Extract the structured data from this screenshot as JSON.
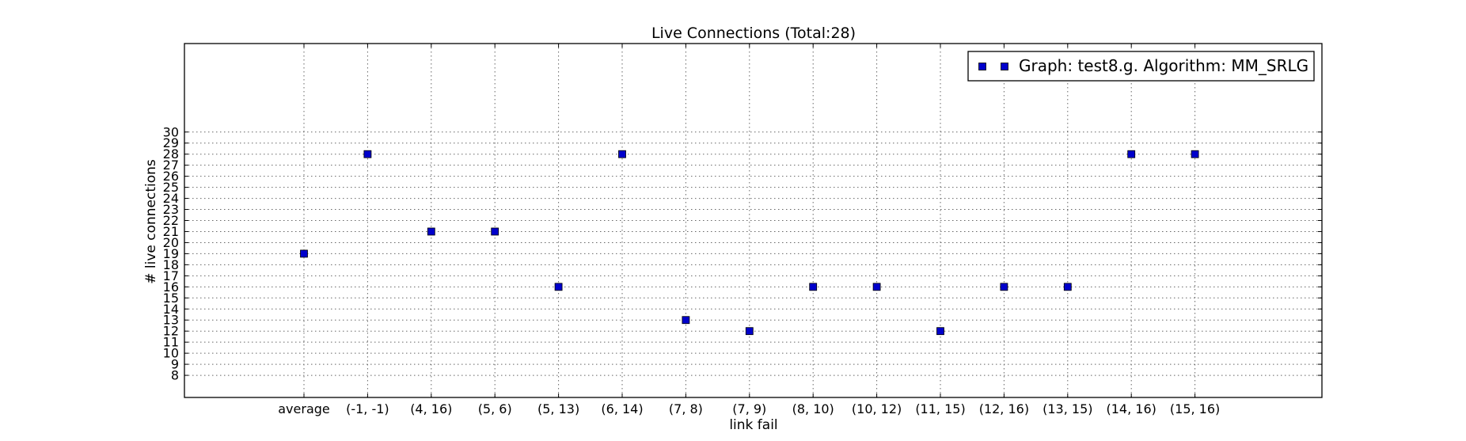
{
  "chart_data": {
    "type": "scatter",
    "title": "Live Connections (Total:28)",
    "xlabel": "link fail",
    "ylabel": "# live connections",
    "categories": [
      "average",
      "(-1, -1)",
      "(4, 16)",
      "(5, 6)",
      "(5, 13)",
      "(6, 14)",
      "(7, 8)",
      "(7, 9)",
      "(8, 10)",
      "(10, 12)",
      "(11, 15)",
      "(12, 16)",
      "(13, 15)",
      "(14, 16)",
      "(15, 16)"
    ],
    "series": [
      {
        "name": "Graph: test8.g. Algorithm: MM_SRLG",
        "color": "#0000cc",
        "marker": "square",
        "values": [
          19,
          28,
          21,
          21,
          16,
          28,
          13,
          12,
          16,
          16,
          12,
          16,
          16,
          28,
          28
        ]
      }
    ],
    "yticks": [
      8,
      9,
      10,
      11,
      12,
      13,
      14,
      15,
      16,
      17,
      18,
      19,
      20,
      21,
      22,
      23,
      24,
      25,
      26,
      27,
      28,
      29,
      30
    ],
    "ylim": [
      6,
      38
    ],
    "grid": true,
    "legend_position": "top-right"
  }
}
